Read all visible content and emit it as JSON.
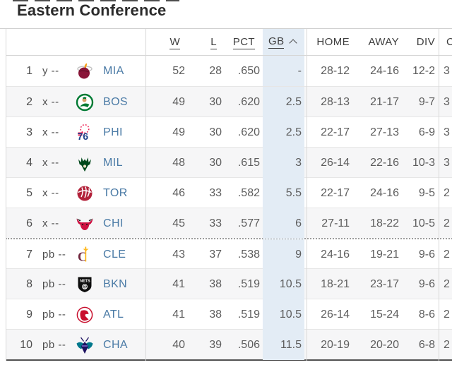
{
  "title": "Eastern Conference",
  "sort": {
    "column": "GB",
    "direction": "ascending"
  },
  "table": {
    "headers": [
      {
        "key": "w",
        "label": "W",
        "sortable": true
      },
      {
        "key": "l",
        "label": "L",
        "sortable": true
      },
      {
        "key": "pct",
        "label": "PCT",
        "sortable": true
      },
      {
        "key": "gb",
        "label": "GB",
        "sortable": true,
        "sorted": true
      },
      {
        "key": "home",
        "label": "HOME",
        "sortable": false
      },
      {
        "key": "away",
        "label": "AWAY",
        "sortable": false
      },
      {
        "key": "div",
        "label": "DIV",
        "sortable": false
      },
      {
        "key": "conf",
        "label": "C",
        "sortable": false,
        "clipped": true
      }
    ],
    "rows": [
      {
        "rank": "1",
        "clinch": "y --",
        "team": "MIA",
        "logo": "miami-heat",
        "w": "52",
        "l": "28",
        "pct": ".650",
        "gb": "-",
        "home": "28-12",
        "away": "24-16",
        "div": "12-2",
        "conf_partial": "3"
      },
      {
        "rank": "2",
        "clinch": "x --",
        "team": "BOS",
        "logo": "boston-celtics",
        "w": "49",
        "l": "30",
        "pct": ".620",
        "gb": "2.5",
        "home": "28-13",
        "away": "21-17",
        "div": "9-7",
        "conf_partial": "3"
      },
      {
        "rank": "3",
        "clinch": "x --",
        "team": "PHI",
        "logo": "philadelphia-76ers",
        "w": "49",
        "l": "30",
        "pct": ".620",
        "gb": "2.5",
        "home": "22-17",
        "away": "27-13",
        "div": "6-9",
        "conf_partial": "3"
      },
      {
        "rank": "4",
        "clinch": "x --",
        "team": "MIL",
        "logo": "milwaukee-bucks",
        "w": "48",
        "l": "30",
        "pct": ".615",
        "gb": "3",
        "home": "26-14",
        "away": "22-16",
        "div": "10-3",
        "conf_partial": "3"
      },
      {
        "rank": "5",
        "clinch": "x --",
        "team": "TOR",
        "logo": "toronto-raptors",
        "w": "46",
        "l": "33",
        "pct": ".582",
        "gb": "5.5",
        "home": "22-17",
        "away": "24-16",
        "div": "9-5",
        "conf_partial": "2"
      },
      {
        "rank": "6",
        "clinch": "x --",
        "team": "CHI",
        "logo": "chicago-bulls",
        "w": "45",
        "l": "33",
        "pct": ".577",
        "gb": "6",
        "home": "27-11",
        "away": "18-22",
        "div": "10-5",
        "conf_partial": "2"
      },
      {
        "rank": "7",
        "clinch": "pb --",
        "team": "CLE",
        "logo": "cleveland-cavaliers",
        "w": "43",
        "l": "37",
        "pct": ".538",
        "gb": "9",
        "home": "24-16",
        "away": "19-21",
        "div": "9-6",
        "conf_partial": "2",
        "separator_before": true
      },
      {
        "rank": "8",
        "clinch": "pb --",
        "team": "BKN",
        "logo": "brooklyn-nets",
        "w": "41",
        "l": "38",
        "pct": ".519",
        "gb": "10.5",
        "home": "18-21",
        "away": "23-17",
        "div": "9-6",
        "conf_partial": "2"
      },
      {
        "rank": "9",
        "clinch": "pb --",
        "team": "ATL",
        "logo": "atlanta-hawks",
        "w": "41",
        "l": "38",
        "pct": ".519",
        "gb": "10.5",
        "home": "26-14",
        "away": "15-24",
        "div": "8-6",
        "conf_partial": "2"
      },
      {
        "rank": "10",
        "clinch": "pb --",
        "team": "CHA",
        "logo": "charlotte-hornets",
        "w": "40",
        "l": "39",
        "pct": ".506",
        "gb": "11.5",
        "home": "20-19",
        "away": "20-20",
        "div": "6-8",
        "conf_partial": "2"
      }
    ]
  },
  "colors": {
    "sorted_column_highlight": "#e3ecf5",
    "zebra_row": "#f6f6f7",
    "team_link": "#4b7ba6",
    "body_text": "#5d5d5d",
    "header_text": "#3e3e3e",
    "row_divider": "#e6e6e6",
    "column_divider": "#d8d8d8",
    "playin_dotted_divider": "#9c9c9c",
    "table_bottom_border": "#515151"
  }
}
